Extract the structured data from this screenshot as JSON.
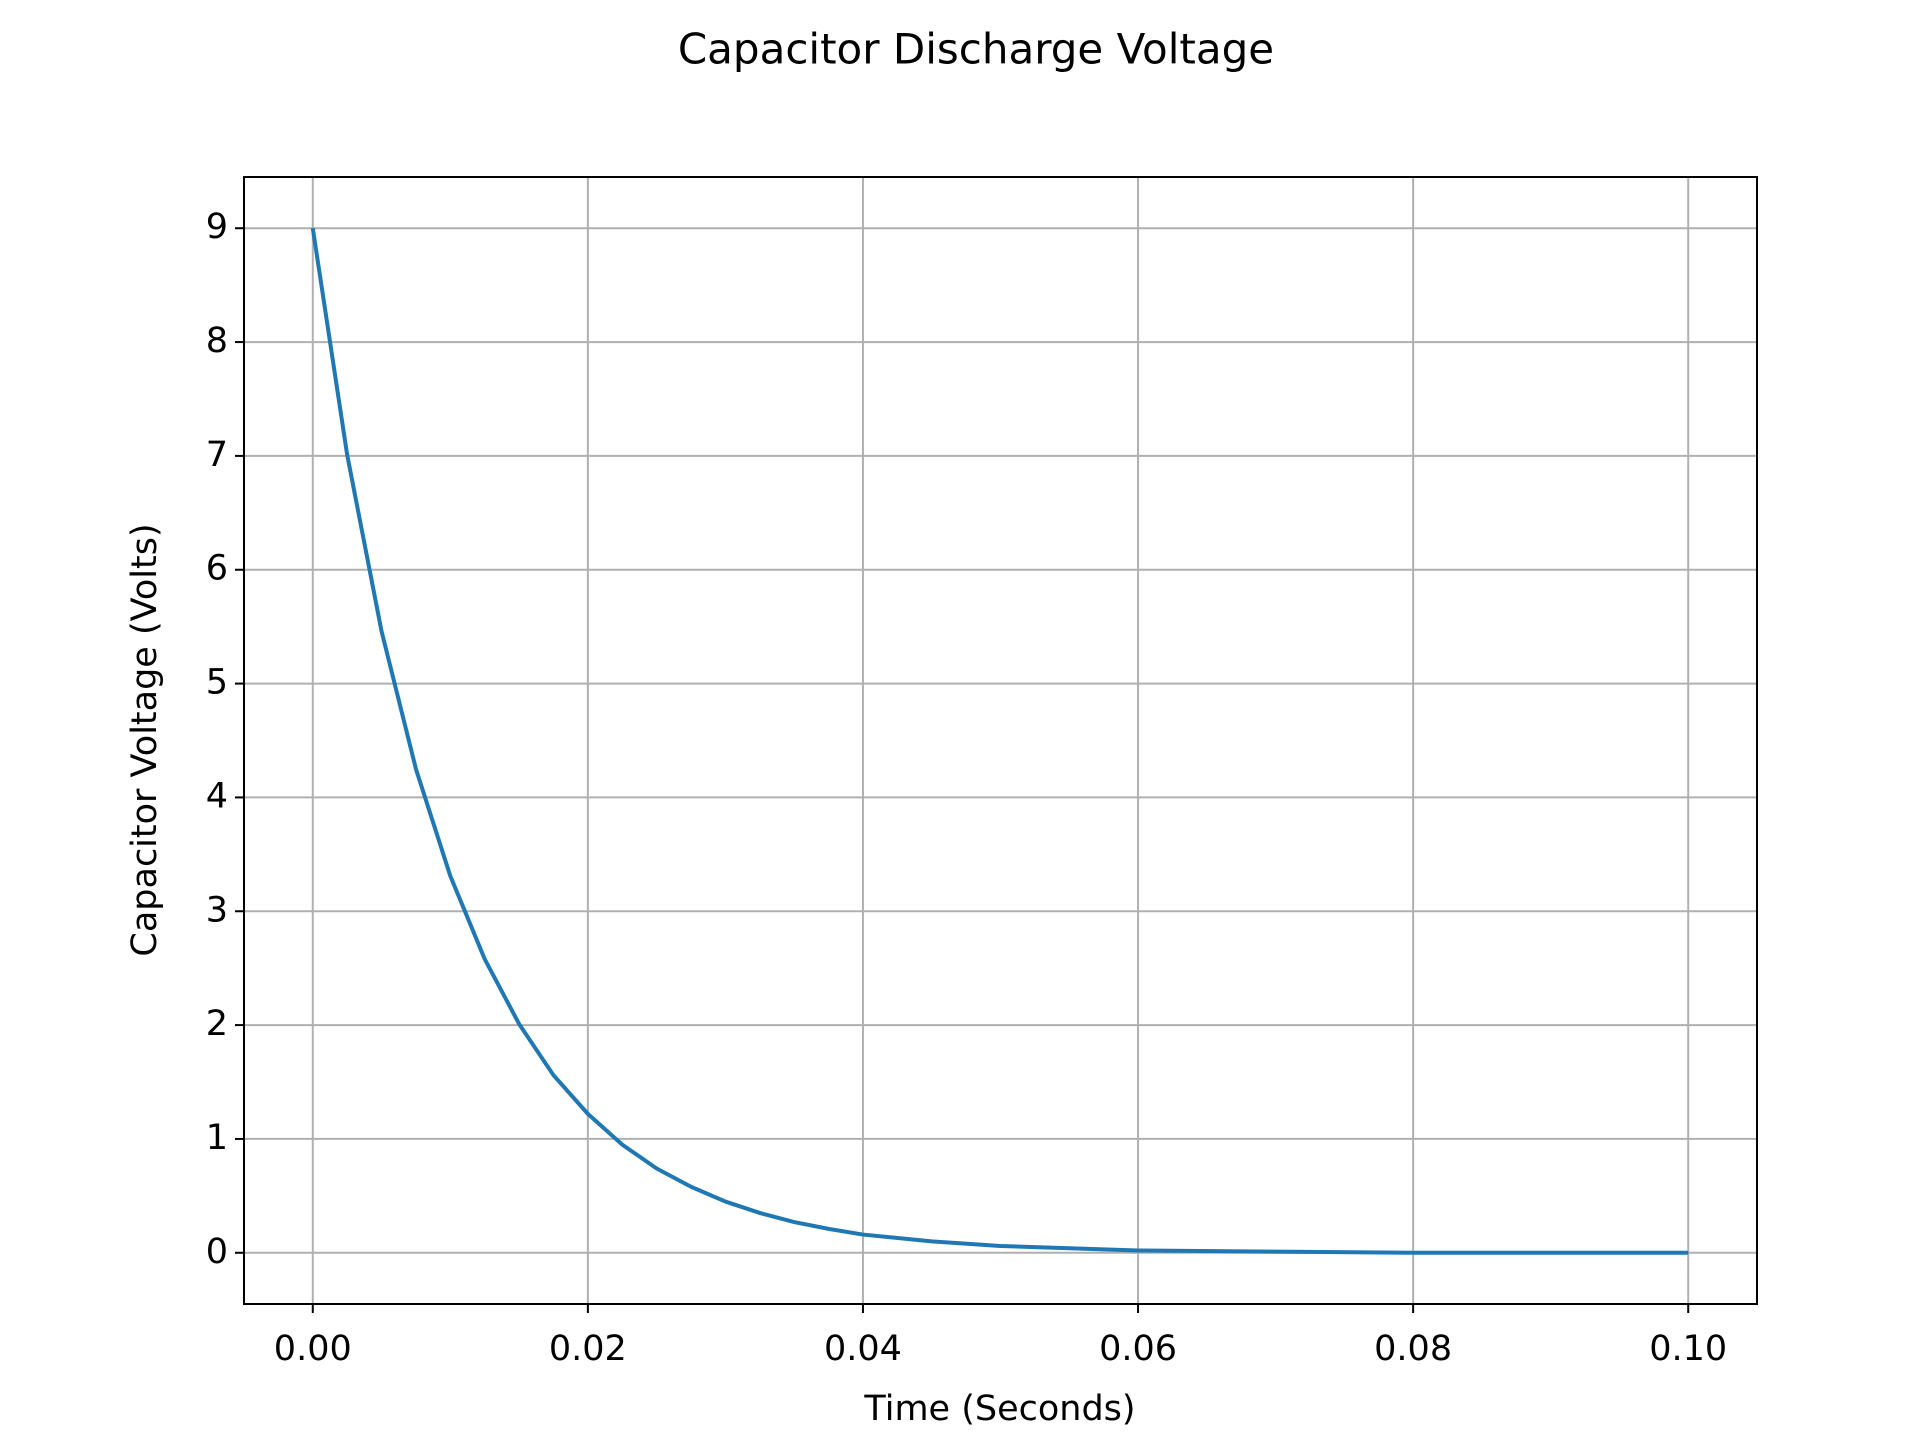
{
  "chart_data": {
    "type": "line",
    "title": "Capacitor Discharge Voltage",
    "x_label": "Time (Seconds)",
    "y_label": "Capacitor Voltage (Volts)",
    "x": [
      0,
      0.0025,
      0.005,
      0.0075,
      0.01,
      0.0125,
      0.015,
      0.0175,
      0.02,
      0.0225,
      0.025,
      0.0275,
      0.03,
      0.0325,
      0.035,
      0.0375,
      0.04,
      0.045,
      0.05,
      0.055,
      0.06,
      0.07,
      0.08,
      0.09,
      0.1
    ],
    "series": [
      {
        "name": "Capacitor Voltage",
        "color": "#1f77b4",
        "values": [
          9.0,
          7.01,
          5.46,
          4.25,
          3.31,
          2.58,
          2.01,
          1.56,
          1.22,
          0.95,
          0.74,
          0.58,
          0.45,
          0.35,
          0.27,
          0.21,
          0.16,
          0.1,
          0.06,
          0.04,
          0.02,
          0.01,
          0.0,
          0.0,
          0.0
        ]
      }
    ],
    "xlim": [
      -0.005,
      0.105
    ],
    "ylim": [
      -0.45,
      9.45
    ],
    "xticks": [
      {
        "value": 0,
        "label": "0.00"
      },
      {
        "value": 0.02,
        "label": "0.02"
      },
      {
        "value": 0.04,
        "label": "0.04"
      },
      {
        "value": 0.06,
        "label": "0.06"
      },
      {
        "value": 0.08,
        "label": "0.08"
      },
      {
        "value": 0.1,
        "label": "0.10"
      }
    ],
    "yticks": [
      0,
      1,
      2,
      3,
      4,
      5,
      6,
      7,
      8,
      9
    ],
    "grid": true
  }
}
